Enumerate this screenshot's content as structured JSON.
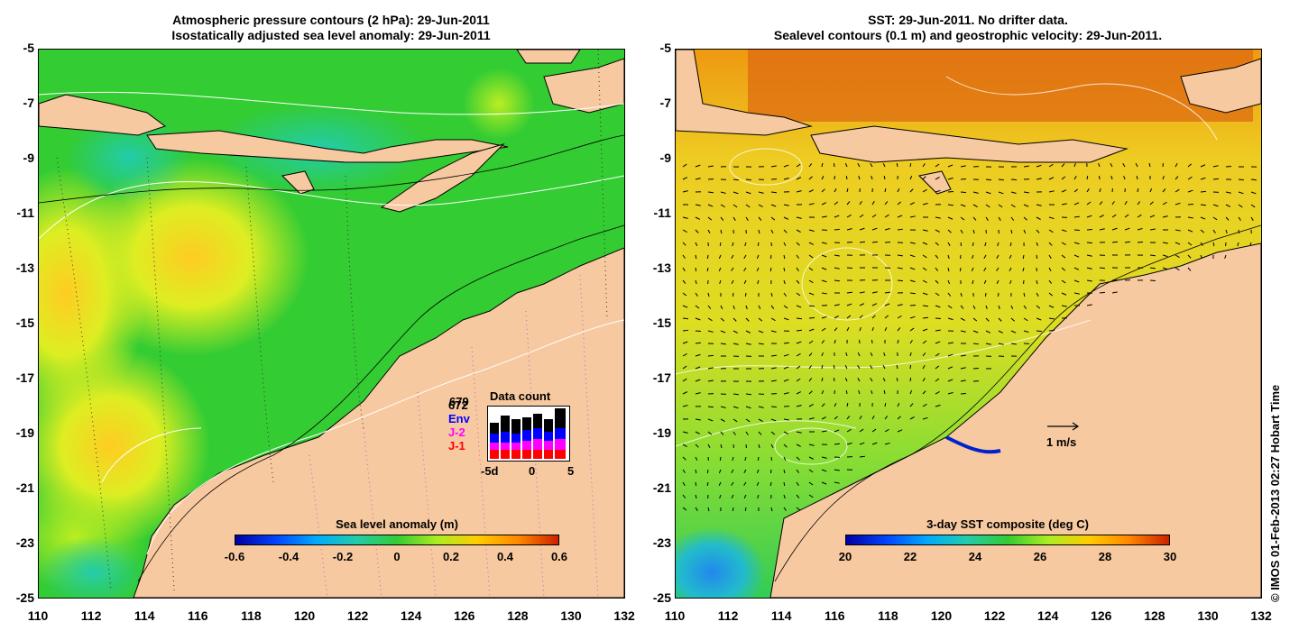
{
  "left_panel": {
    "title_line1": "Atmospheric pressure contours (2 hPa): 29-Jun-2011",
    "title_line2": "Isostatically adjusted sea level anomaly: 29-Jun-2011",
    "colorbar_title": "Sea level anomaly (m)",
    "colorbar_ticks": [
      "-0.6",
      "-0.4",
      "-0.2",
      "0",
      "0.2",
      "0.4",
      "0.6"
    ],
    "data_count": {
      "title": "Data count",
      "labels": [
        "672",
        "Env",
        "J-2",
        "J-1"
      ],
      "overlap_label": "679",
      "x_ticks": [
        "-5d",
        "0",
        "5"
      ],
      "colors": {
        "672": "#000000",
        "Env": "#0000ff",
        "J-2": "#ff00ff",
        "J-1": "#ff0000"
      }
    }
  },
  "right_panel": {
    "title_line1": "SST: 29-Jun-2011. No drifter data.",
    "title_line2": "Sealevel contours (0.1 m) and geostrophic velocity: 29-Jun-2011.",
    "colorbar_title": "3-day SST composite (deg C)",
    "colorbar_ticks": [
      "20",
      "22",
      "24",
      "26",
      "28",
      "30"
    ],
    "velocity_scale_label": "1 m/s"
  },
  "y_axis_labels": [
    "-5",
    "-7",
    "-9",
    "-11",
    "-13",
    "-15",
    "-17",
    "-19",
    "-21",
    "-23",
    "-25"
  ],
  "x_axis_labels": [
    "110",
    "112",
    "114",
    "116",
    "118",
    "120",
    "122",
    "124",
    "126",
    "128",
    "130",
    "132"
  ],
  "credit": "© IMOS 01-Feb-2013 02:27 Hobart Time",
  "colors": {
    "land": "#f7c9a0",
    "ocean_green": "#33cc33",
    "ocean_yellow": "#ddee22"
  }
}
